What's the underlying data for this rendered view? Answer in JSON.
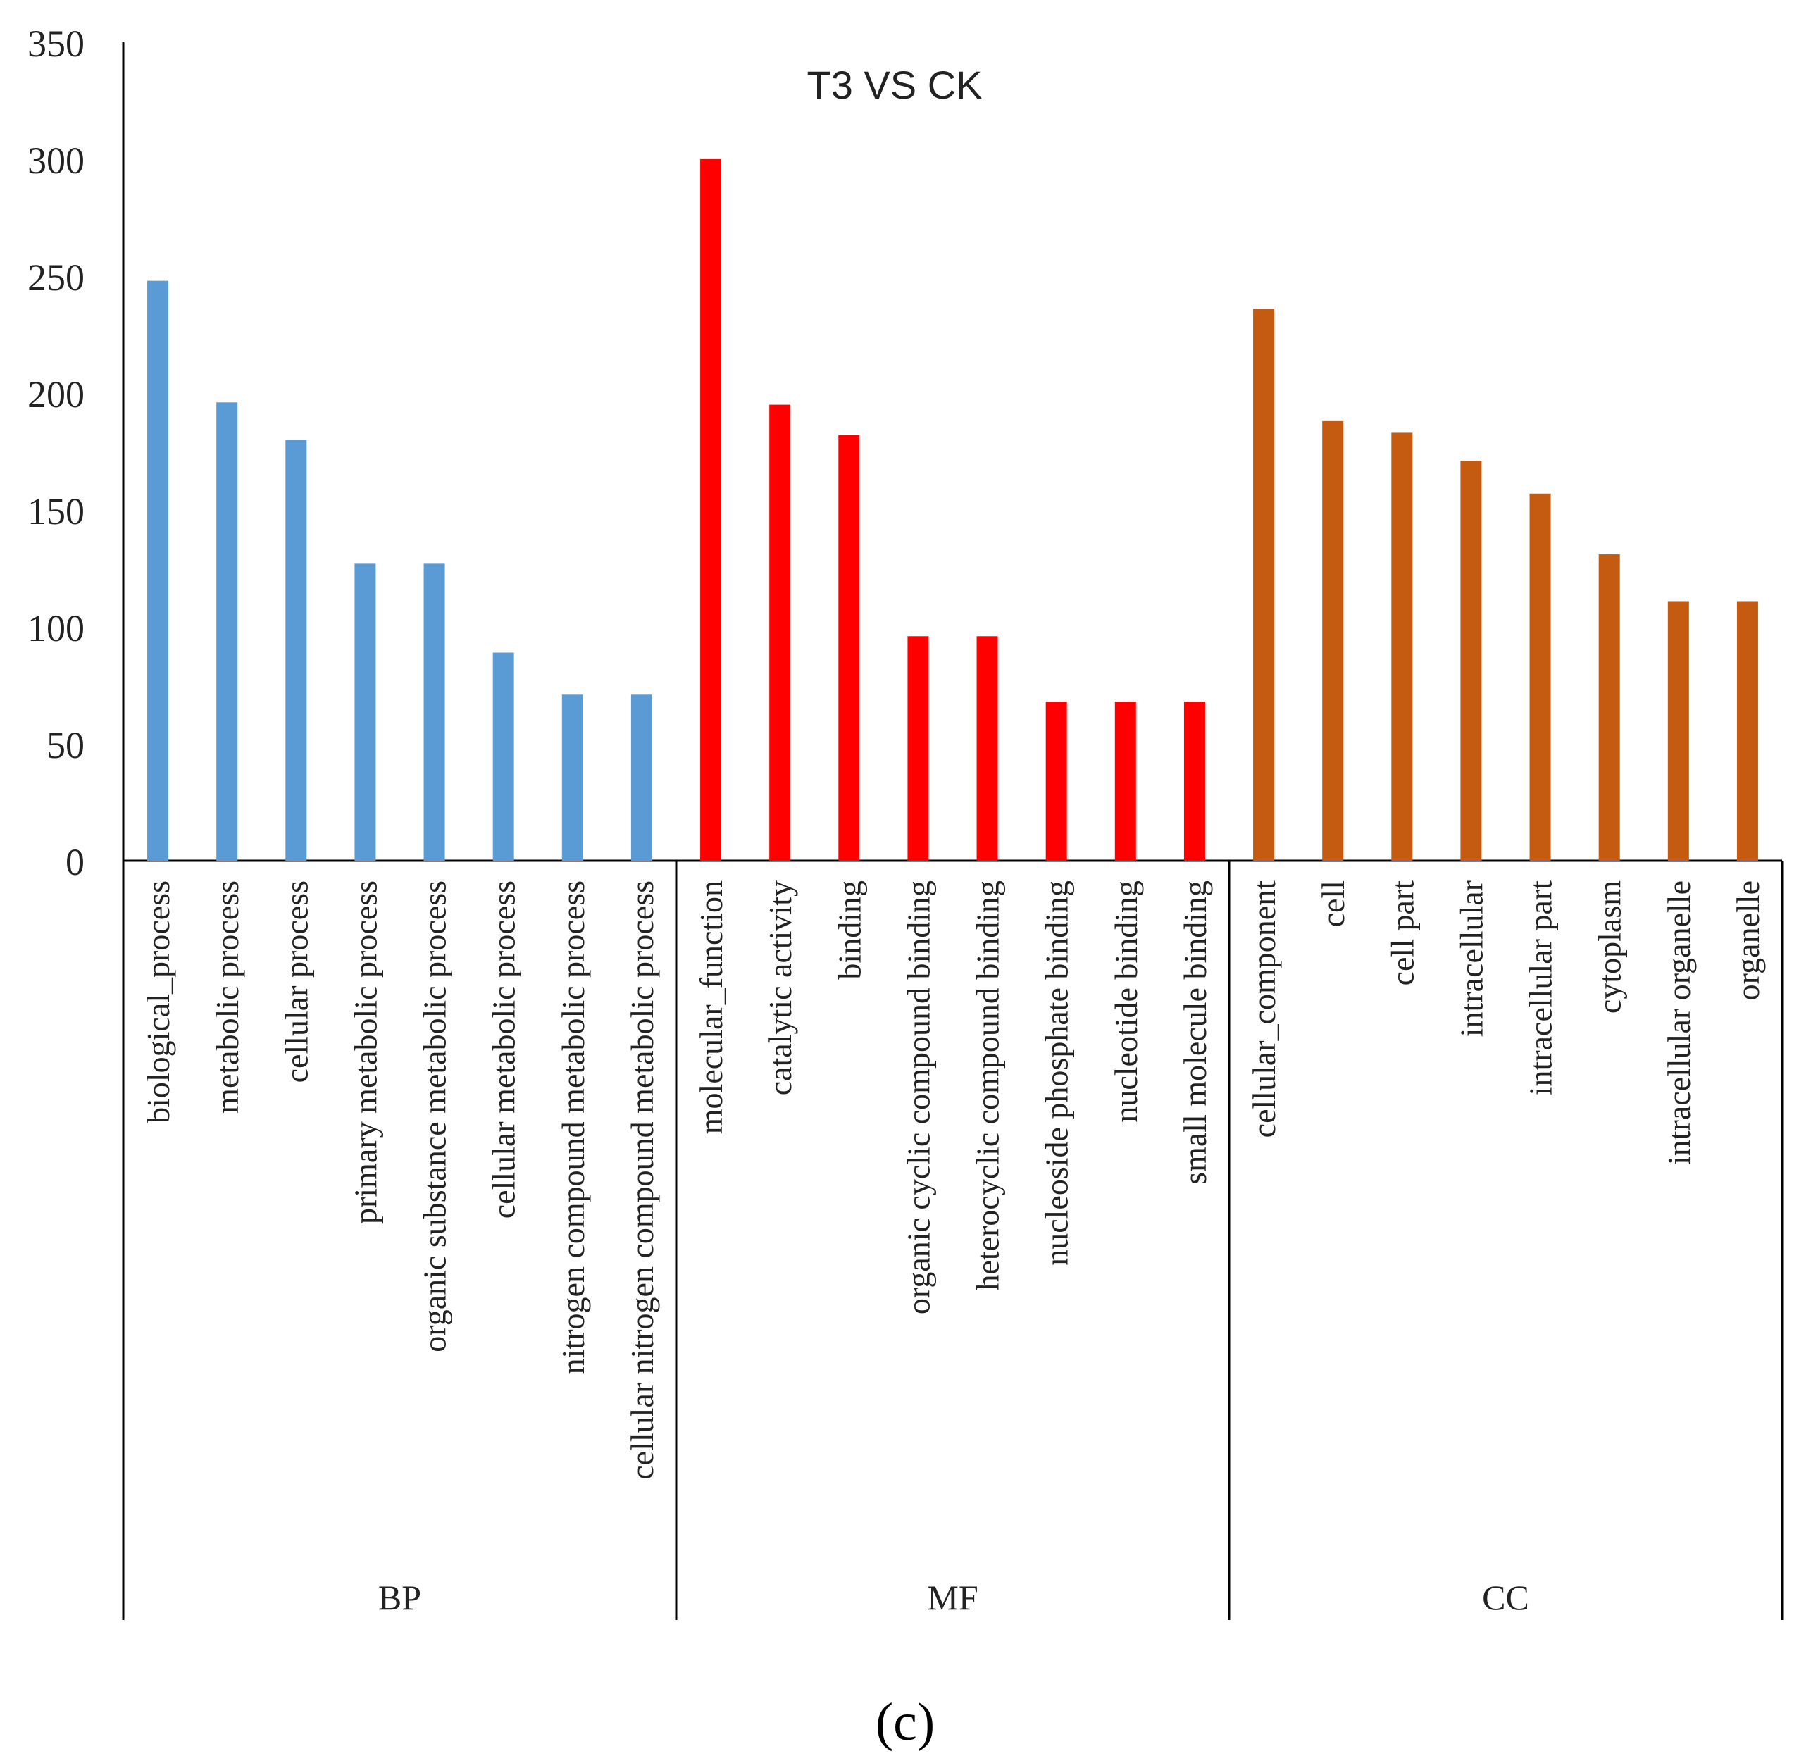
{
  "chart_data": {
    "type": "bar",
    "title": "T3 VS CK",
    "panel_label": "(c)",
    "xlabel": "",
    "ylabel": "",
    "ylim": [
      0,
      350
    ],
    "yticks": [
      0,
      50,
      100,
      150,
      200,
      250,
      300,
      350
    ],
    "grid": false,
    "legend": "none",
    "groups": [
      {
        "name": "BP",
        "color": "#5b9bd5",
        "categories": [
          "biological_process",
          "metabolic process",
          "cellular process",
          "primary metabolic process",
          "organic substance metabolic process",
          "cellular metabolic process",
          "nitrogen compound metabolic process",
          "cellular nitrogen compound metabolic process"
        ],
        "values": [
          248,
          196,
          180,
          127,
          127,
          89,
          71,
          71
        ]
      },
      {
        "name": "MF",
        "color": "#ff0000",
        "categories": [
          "molecular_function",
          "catalytic activity",
          "binding",
          "organic cyclic compound binding",
          "heterocyclic compound binding",
          "nucleoside phosphate binding",
          "nucleotide binding",
          "small molecule binding"
        ],
        "values": [
          300,
          195,
          182,
          96,
          96,
          68,
          68,
          68
        ]
      },
      {
        "name": "CC",
        "color": "#c55a11",
        "categories": [
          "cellular_component",
          "cell",
          "cell part",
          "intracellular",
          "intracellular part",
          "cytoplasm",
          "intracellular organelle",
          "organelle"
        ],
        "values": [
          236,
          188,
          183,
          171,
          157,
          131,
          111,
          111
        ]
      }
    ]
  }
}
